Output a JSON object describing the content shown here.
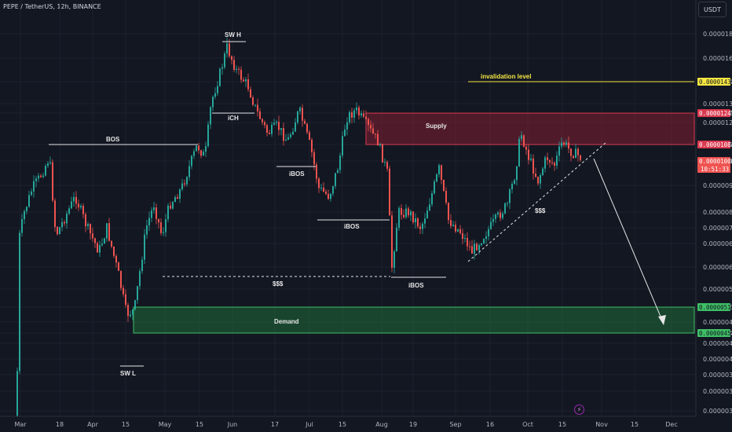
{
  "header": {
    "symbol_line": "PEPE / TetherUS, 12h, BINANCE"
  },
  "currency_button": "USDT",
  "colors": {
    "background": "#131722",
    "up": "#26a69a",
    "down": "#ef5350",
    "supply_zone": "#b2223a",
    "demand_zone": "#1f6b3a",
    "invalidation": "#f5e642",
    "current_price": "#ef5350"
  },
  "chart_data": {
    "type": "candlestick",
    "y_axis_ticks": [
      "0.00001800",
      "0.00001600",
      "0.00001439",
      "0.00001300",
      "0.00001247",
      "0.00001200",
      "0.00001084",
      "0.00001006",
      "0.00000900",
      "0.00000800",
      "0.00000740",
      "0.00000680",
      "0.00000620",
      "0.00000560",
      "0.00000516",
      "0.00000480",
      "0.00000459",
      "0.00000440",
      "0.00000405",
      "0.00000375",
      "0.00000345",
      "0.00000319"
    ],
    "x_axis_ticks": [
      "Mar",
      "18",
      "Apr",
      "15",
      "May",
      "15",
      "Jun",
      "17",
      "Jul",
      "15",
      "Aug",
      "19",
      "Sep",
      "16",
      "Oct",
      "15",
      "Nov",
      "15",
      "Dec"
    ],
    "price_tags": [
      {
        "value": "0.00001439",
        "kind": "invalidation"
      },
      {
        "value": "0.00001247",
        "kind": "supply"
      },
      {
        "value": "0.00001084",
        "kind": "supply"
      },
      {
        "value": "0.00001006",
        "kind": "current",
        "countdown": "10:51:33"
      },
      {
        "value": "0.00000516",
        "kind": "demand"
      },
      {
        "value": "0.00000459",
        "kind": "demand"
      }
    ],
    "zones": [
      {
        "name": "Supply",
        "top": "0.00001247",
        "bottom": "0.00001084"
      },
      {
        "name": "Demand",
        "top": "0.00000516",
        "bottom": "0.00000459"
      }
    ],
    "annotations": [
      "SW H",
      "SW L",
      "BOS",
      "iCH",
      "iBOS",
      "iBOS",
      "iBOS",
      "$$$",
      "$$$",
      "invalidation level"
    ]
  }
}
